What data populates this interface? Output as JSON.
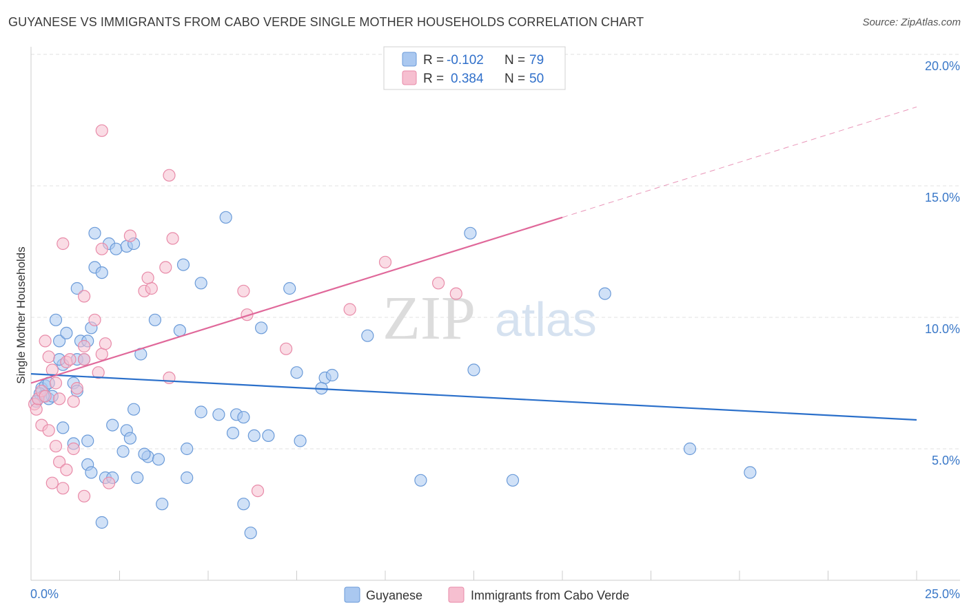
{
  "title": "GUYANESE VS IMMIGRANTS FROM CABO VERDE SINGLE MOTHER HOUSEHOLDS CORRELATION CHART",
  "source": "Source: ZipAtlas.com",
  "colors": {
    "blue_fill": "#aac8f0",
    "blue_stroke": "#6a9ad8",
    "blue_line": "#2a6fca",
    "pink_fill": "#f6bfd0",
    "pink_stroke": "#e88aa8",
    "pink_line": "#e0689a",
    "axis_label": "#3a78c8",
    "grid": "#e2e2e2"
  },
  "watermark": {
    "zip": "ZIP",
    "atlas": "atlas"
  },
  "legend": {
    "row1": {
      "r_label": "R =",
      "r_value": "-0.102",
      "n_label": "N =",
      "n_value": "79"
    },
    "row2": {
      "r_label": "R =",
      "r_value": "0.384",
      "n_label": "N =",
      "n_value": "50"
    }
  },
  "bottom_legend": {
    "series1": "Guyanese",
    "series2": "Immigrants from Cabo Verde"
  },
  "chart_data": {
    "type": "scatter",
    "title": "GUYANESE VS IMMIGRANTS FROM CABO VERDE SINGLE MOTHER HOUSEHOLDS CORRELATION CHART",
    "xlabel": "",
    "ylabel": "Single Mother Households",
    "xlim": [
      0,
      25
    ],
    "ylim": [
      0,
      20
    ],
    "x_tick_labels": [
      "0.0%",
      "25.0%"
    ],
    "y_ticks": [
      5,
      10,
      15,
      20
    ],
    "y_tick_labels": [
      "5.0%",
      "10.0%",
      "15.0%",
      "20.0%"
    ],
    "series": [
      {
        "name": "Guyanese",
        "R": -0.102,
        "N": 79,
        "trend": {
          "x": [
            0,
            25
          ],
          "y": [
            7.85,
            6.1
          ],
          "dashed_from": null
        },
        "points": [
          [
            0.2,
            6.9
          ],
          [
            0.3,
            7.3
          ],
          [
            0.4,
            7.4
          ],
          [
            0.5,
            6.9
          ],
          [
            0.6,
            7.0
          ],
          [
            0.25,
            7.1
          ],
          [
            0.35,
            7.0
          ],
          [
            0.15,
            6.8
          ],
          [
            0.7,
            9.9
          ],
          [
            0.8,
            9.1
          ],
          [
            0.9,
            8.2
          ],
          [
            1.0,
            9.4
          ],
          [
            0.8,
            8.4
          ],
          [
            1.3,
            8.4
          ],
          [
            1.5,
            8.4
          ],
          [
            1.4,
            9.1
          ],
          [
            1.6,
            9.1
          ],
          [
            1.7,
            9.6
          ],
          [
            1.3,
            11.1
          ],
          [
            1.8,
            11.9
          ],
          [
            2.2,
            12.8
          ],
          [
            2.4,
            12.6
          ],
          [
            2.7,
            12.7
          ],
          [
            2.9,
            12.8
          ],
          [
            1.8,
            13.2
          ],
          [
            2.0,
            11.7
          ],
          [
            3.5,
            9.9
          ],
          [
            4.3,
            12.0
          ],
          [
            4.8,
            11.3
          ],
          [
            5.5,
            13.8
          ],
          [
            6.5,
            9.6
          ],
          [
            7.3,
            11.1
          ],
          [
            4.2,
            9.5
          ],
          [
            3.1,
            8.6
          ],
          [
            1.2,
            7.5
          ],
          [
            1.3,
            7.2
          ],
          [
            0.9,
            5.8
          ],
          [
            1.2,
            5.2
          ],
          [
            2.3,
            5.9
          ],
          [
            2.7,
            5.7
          ],
          [
            2.9,
            6.5
          ],
          [
            2.8,
            5.4
          ],
          [
            2.6,
            4.9
          ],
          [
            3.3,
            4.7
          ],
          [
            3.6,
            4.6
          ],
          [
            4.4,
            5.0
          ],
          [
            5.3,
            6.3
          ],
          [
            4.8,
            6.4
          ],
          [
            5.8,
            6.3
          ],
          [
            6.0,
            6.2
          ],
          [
            5.7,
            5.6
          ],
          [
            6.3,
            5.5
          ],
          [
            6.7,
            5.5
          ],
          [
            7.6,
            5.3
          ],
          [
            8.3,
            7.7
          ],
          [
            8.5,
            7.8
          ],
          [
            7.5,
            7.9
          ],
          [
            8.2,
            7.3
          ],
          [
            9.5,
            9.3
          ],
          [
            12.4,
            13.2
          ],
          [
            12.5,
            8.0
          ],
          [
            16.2,
            10.9
          ],
          [
            18.6,
            5.0
          ],
          [
            20.3,
            4.1
          ],
          [
            11.0,
            3.8
          ],
          [
            13.6,
            3.8
          ],
          [
            1.6,
            4.4
          ],
          [
            1.7,
            4.1
          ],
          [
            2.1,
            3.9
          ],
          [
            2.3,
            3.9
          ],
          [
            3.0,
            3.9
          ],
          [
            4.4,
            3.9
          ],
          [
            3.7,
            2.9
          ],
          [
            6.0,
            2.9
          ],
          [
            6.2,
            1.8
          ],
          [
            2.0,
            2.2
          ],
          [
            3.2,
            4.8
          ],
          [
            1.6,
            5.3
          ],
          [
            0.5,
            7.5
          ]
        ]
      },
      {
        "name": "Immigrants from Cabo Verde",
        "R": 0.384,
        "N": 50,
        "trend": {
          "x": [
            0,
            15
          ],
          "y": [
            7.5,
            13.8
          ],
          "dashed_to": [
            25,
            18.0
          ]
        },
        "points": [
          [
            0.1,
            6.7
          ],
          [
            0.15,
            6.5
          ],
          [
            0.2,
            6.9
          ],
          [
            0.3,
            7.2
          ],
          [
            0.4,
            7.0
          ],
          [
            0.5,
            8.5
          ],
          [
            0.6,
            8.0
          ],
          [
            0.4,
            9.1
          ],
          [
            0.7,
            7.5
          ],
          [
            0.8,
            6.9
          ],
          [
            1.0,
            8.3
          ],
          [
            1.1,
            8.4
          ],
          [
            1.2,
            6.8
          ],
          [
            1.3,
            7.3
          ],
          [
            1.5,
            8.4
          ],
          [
            1.8,
            9.9
          ],
          [
            1.9,
            7.9
          ],
          [
            2.0,
            8.6
          ],
          [
            2.1,
            9.0
          ],
          [
            1.5,
            10.8
          ],
          [
            0.9,
            12.8
          ],
          [
            2.0,
            12.6
          ],
          [
            2.8,
            13.1
          ],
          [
            3.2,
            11.0
          ],
          [
            3.4,
            11.1
          ],
          [
            3.3,
            11.5
          ],
          [
            3.8,
            11.9
          ],
          [
            4.0,
            13.0
          ],
          [
            3.9,
            7.7
          ],
          [
            2.0,
            17.1
          ],
          [
            3.9,
            15.4
          ],
          [
            6.0,
            11.0
          ],
          [
            6.1,
            10.1
          ],
          [
            7.2,
            8.8
          ],
          [
            9.0,
            10.3
          ],
          [
            10.0,
            12.1
          ],
          [
            11.5,
            11.3
          ],
          [
            12.0,
            10.9
          ],
          [
            1.5,
            8.9
          ],
          [
            0.3,
            5.9
          ],
          [
            0.5,
            5.7
          ],
          [
            0.7,
            5.1
          ],
          [
            0.8,
            4.5
          ],
          [
            1.0,
            4.2
          ],
          [
            1.2,
            5.0
          ],
          [
            0.6,
            3.7
          ],
          [
            0.9,
            3.5
          ],
          [
            1.5,
            3.2
          ],
          [
            2.2,
            3.7
          ],
          [
            6.4,
            3.4
          ]
        ]
      }
    ]
  }
}
